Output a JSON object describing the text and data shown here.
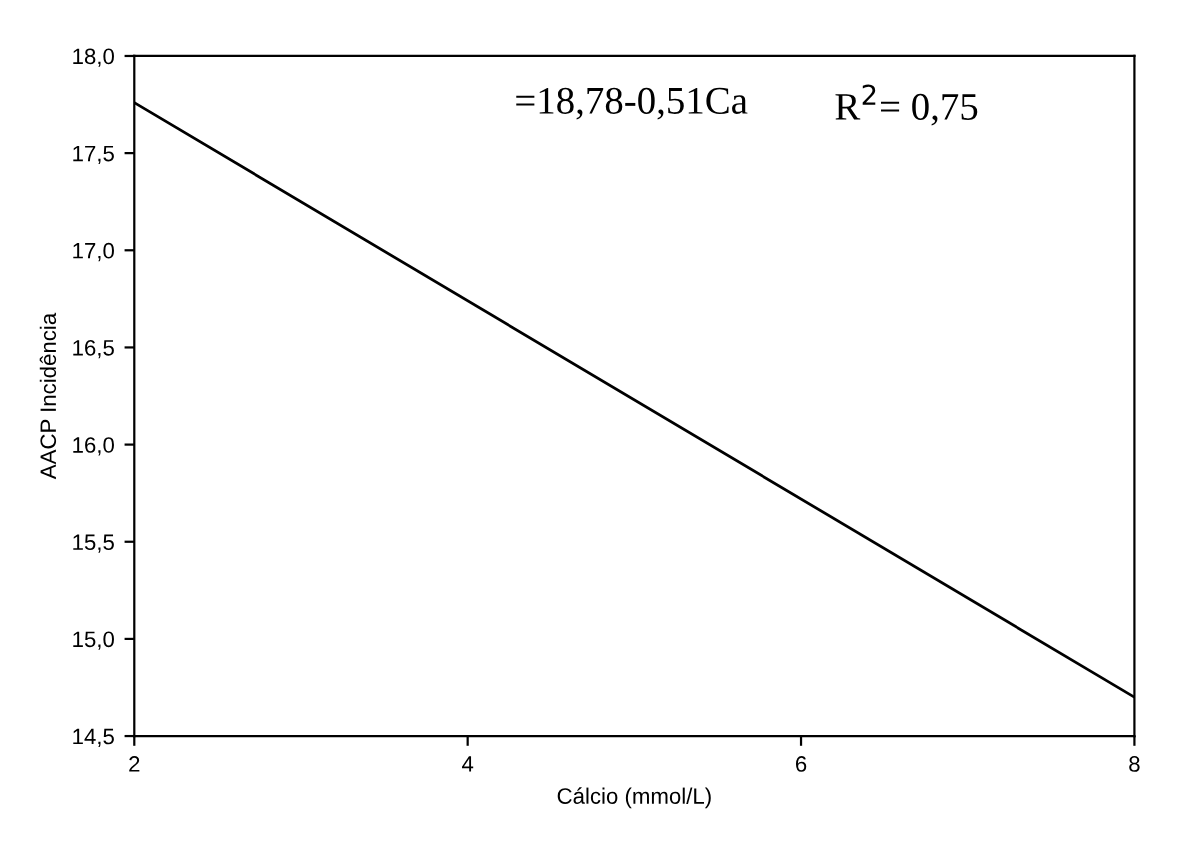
{
  "chart_data": {
    "type": "line",
    "xlabel": "Cálcio (mmol/L)",
    "ylabel": "AACP Incidência",
    "x": [
      2,
      8
    ],
    "series": [
      {
        "color": "#000000",
        "values": [
          17.76,
          14.7
        ]
      }
    ],
    "xlim": [
      2,
      8
    ],
    "xticks": [
      2,
      4,
      6,
      8
    ],
    "ylim": [
      14.5,
      18.0
    ],
    "yticks": [
      {
        "value": 14.5,
        "label": "14,5"
      },
      {
        "value": 15.0,
        "label": "15,0"
      },
      {
        "value": 15.5,
        "label": "15,5"
      },
      {
        "value": 16.0,
        "label": "16,0"
      },
      {
        "value": 16.5,
        "label": "16,5"
      },
      {
        "value": 17.0,
        "label": "17,0"
      },
      {
        "value": 17.5,
        "label": "17,5"
      },
      {
        "value": 18.0,
        "label": "18,0"
      }
    ],
    "grid": false,
    "marker": "none",
    "line_style": "solid",
    "annotations": [
      "=18,78-0,51Ca",
      "R$^{2}$= 0,75"
    ]
  }
}
